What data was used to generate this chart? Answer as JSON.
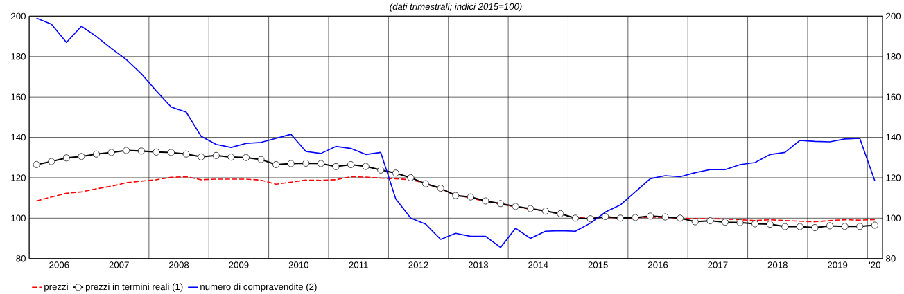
{
  "chart_data": {
    "type": "line",
    "subtitle": "(dati trimestrali; indici 2015=100)",
    "x": [
      "2006-02-15",
      "2006-05-15",
      "2006-08-15",
      "2006-11-15",
      "2007-02-15",
      "2007-05-15",
      "2007-08-15",
      "2007-11-15",
      "2008-02-15",
      "2008-05-15",
      "2008-08-15",
      "2008-11-15",
      "2009-02-15",
      "2009-05-15",
      "2009-08-15",
      "2009-11-15",
      "2010-02-15",
      "2010-05-15",
      "2010-08-15",
      "2010-11-15",
      "2011-02-15",
      "2011-05-15",
      "2011-08-15",
      "2011-11-15",
      "2012-02-15",
      "2012-05-15",
      "2012-08-15",
      "2012-11-15",
      "2013-02-15",
      "2013-05-15",
      "2013-08-15",
      "2013-11-15",
      "2014-02-15",
      "2014-05-15",
      "2014-08-15",
      "2014-11-15",
      "2015-02-15",
      "2015-05-15",
      "2015-08-15",
      "2015-11-15",
      "2016-02-15",
      "2016-05-15",
      "2016-08-15",
      "2016-11-15",
      "2017-02-15",
      "2017-05-15",
      "2017-08-15",
      "2017-11-15",
      "2018-02-15",
      "2018-05-15",
      "2018-08-15",
      "2018-11-15",
      "2019-02-15",
      "2019-05-15",
      "2019-08-15",
      "2019-11-15",
      "2020-02-15"
    ],
    "series": [
      {
        "name": "prezzi",
        "color": "#ff0000",
        "line_style": "dashed",
        "marker": "none",
        "values": [
          108.5,
          110.5,
          112.3,
          113,
          114.5,
          115.8,
          117.5,
          118.3,
          119,
          120.2,
          120.5,
          119,
          119.3,
          119.3,
          119.3,
          118.8,
          116.8,
          117.8,
          118.8,
          118.7,
          119,
          120.5,
          120.3,
          119.8,
          119.5,
          119,
          117.2,
          114.5,
          111.5,
          110,
          108.2,
          107,
          105.5,
          104.5,
          103.5,
          102,
          100.2,
          100,
          100.5,
          100,
          100.2,
          100.5,
          100.4,
          100,
          99.7,
          99.8,
          99.5,
          99.2,
          98.8,
          99.2,
          98.8,
          98.5,
          98.2,
          98.8,
          99.2,
          99,
          99.3
        ]
      },
      {
        "name": "prezzi in termini reali (1)",
        "color": "#000000",
        "line_style": "solid",
        "marker": "circle",
        "values": [
          126.5,
          128,
          129.8,
          130.5,
          131.7,
          132.5,
          133.5,
          133.2,
          132.7,
          132.5,
          131.7,
          130.3,
          131,
          130.2,
          130,
          129,
          126.5,
          127,
          127.2,
          127,
          125.5,
          126.5,
          125.6,
          123.8,
          122.3,
          120,
          117,
          114.8,
          111.2,
          110.5,
          108.5,
          107.2,
          105.8,
          104.7,
          103.5,
          102.2,
          100,
          99.7,
          100.8,
          100,
          100.3,
          101,
          100.6,
          100,
          98.2,
          98.7,
          98,
          97.8,
          97.2,
          97,
          95.8,
          95.8,
          95.3,
          96.2,
          95.9,
          95.9,
          96.5
        ]
      },
      {
        "name": "numero di compravendite (2)",
        "color": "#0000ff",
        "line_style": "solid",
        "marker": "none",
        "values": [
          199,
          196,
          187,
          195,
          190,
          184,
          178.5,
          171.5,
          163,
          155,
          152.5,
          140.5,
          136.5,
          135,
          137,
          137.5,
          139.5,
          141.5,
          133,
          132,
          135.5,
          134.5,
          131.5,
          132.5,
          109.5,
          100,
          97,
          89.5,
          92.5,
          91,
          91,
          85.5,
          95,
          90,
          93.5,
          93.8,
          93.5,
          97.5,
          103,
          106.5,
          113,
          119.5,
          121,
          120.5,
          122.5,
          124,
          124,
          126.5,
          127.5,
          131.5,
          132.5,
          138.5,
          138,
          137.8,
          139.2,
          139.5,
          118.5
        ]
      }
    ],
    "xlim": [
      "2006-01-01",
      "2020-04-01"
    ],
    "xticks": [
      {
        "value": "2006-01-01",
        "label": null
      },
      {
        "value": "2007-01-01",
        "label": null
      },
      {
        "value": "2008-01-01",
        "label": null
      },
      {
        "value": "2009-01-01",
        "label": null
      },
      {
        "value": "2010-01-01",
        "label": null
      },
      {
        "value": "2011-01-01",
        "label": null
      },
      {
        "value": "2012-01-01",
        "label": null
      },
      {
        "value": "2013-01-01",
        "label": null
      },
      {
        "value": "2014-01-01",
        "label": null
      },
      {
        "value": "2015-01-01",
        "label": null
      },
      {
        "value": "2016-01-01",
        "label": null
      },
      {
        "value": "2017-01-01",
        "label": null
      },
      {
        "value": "2018-01-01",
        "label": null
      },
      {
        "value": "2019-01-01",
        "label": null
      },
      {
        "value": "2020-01-01",
        "label": null
      },
      {
        "value": "2006-07-01",
        "label": "2006"
      },
      {
        "value": "2007-07-01",
        "label": "2007"
      },
      {
        "value": "2008-07-01",
        "label": "2008"
      },
      {
        "value": "2009-07-01",
        "label": "2009"
      },
      {
        "value": "2010-07-01",
        "label": "2010"
      },
      {
        "value": "2011-07-01",
        "label": "2011"
      },
      {
        "value": "2012-07-01",
        "label": "2012"
      },
      {
        "value": "2013-07-01",
        "label": "2013"
      },
      {
        "value": "2014-07-01",
        "label": "2014"
      },
      {
        "value": "2015-07-01",
        "label": "2015"
      },
      {
        "value": "2016-07-01",
        "label": "2016"
      },
      {
        "value": "2017-07-01",
        "label": "2017"
      },
      {
        "value": "2018-07-01",
        "label": "2018"
      },
      {
        "value": "2019-07-01",
        "label": "2019"
      },
      {
        "value": "2020-02-15",
        "label": "'20"
      }
    ],
    "ylim": [
      80,
      200
    ],
    "yticks": [
      80,
      100,
      120,
      140,
      160,
      180,
      200
    ],
    "y2lim": [
      80,
      200
    ],
    "y2ticks": [
      80,
      100,
      120,
      140,
      160,
      180,
      200
    ],
    "grid": true,
    "legend": "bottom left"
  }
}
